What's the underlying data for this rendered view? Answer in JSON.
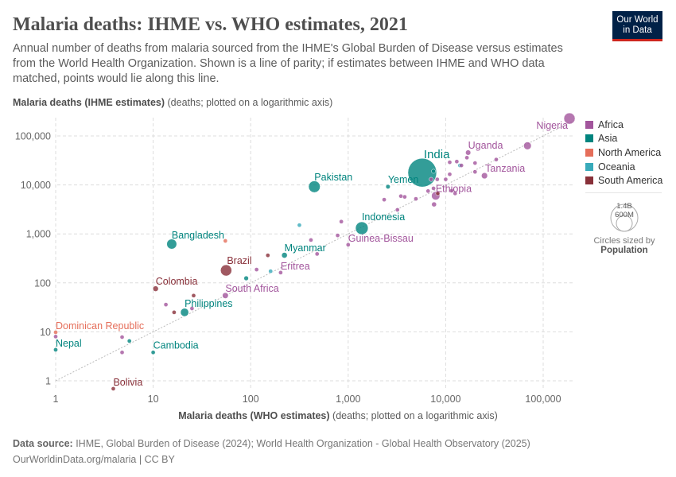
{
  "header": {
    "title": "Malaria deaths: IHME vs. WHO estimates, 2021",
    "subtitle": "Annual number of deaths from malaria sourced from the IHME's Global Burden of Disease versus estimates from the World Health Organization. Shown is a line of parity; if estimates between IHME and WHO data matched, points would lie along this line.",
    "logo": "Our World in Data"
  },
  "chart_data": {
    "type": "scatter",
    "title": "Malaria deaths: IHME vs. WHO estimates, 2021",
    "xlabel_bold": "Malaria deaths (WHO estimates)",
    "xlabel_note": " (deaths; plotted on a logarithmic axis)",
    "ylabel_bold": "Malaria deaths (IHME estimates)",
    "ylabel_note": " (deaths; plotted on a logarithmic axis)",
    "x_scale": "log",
    "y_scale": "log",
    "xlim": [
      1,
      200000
    ],
    "ylim": [
      0.6,
      250000
    ],
    "x_ticks": [
      "1",
      "10",
      "100",
      "1,000",
      "10,000",
      "100,000"
    ],
    "y_ticks": [
      "1",
      "10",
      "100",
      "1,000",
      "10,000",
      "100,000"
    ],
    "grid": true,
    "parity_line": true,
    "legend_placement": "right",
    "colors": {
      "Africa": "#a2559c",
      "Asia": "#00847e",
      "North America": "#e56e5a",
      "Oceania": "#38aaba",
      "South America": "#883039"
    },
    "legend": [
      "Africa",
      "Asia",
      "North America",
      "Oceania",
      "South America"
    ],
    "size_legend": {
      "large": "1.4B",
      "small": "600M",
      "note": "Circles sized by",
      "variable": "Population"
    },
    "points": [
      {
        "label": "Nigeria",
        "region": "Africa",
        "x": 186000,
        "y": 227000,
        "pop": 213000000
      },
      {
        "label": "India",
        "region": "Asia",
        "x": 5750,
        "y": 17800,
        "pop": 1400000000
      },
      {
        "label": "Pakistan",
        "region": "Asia",
        "x": 450,
        "y": 9200,
        "pop": 230000000
      },
      {
        "label": "Bangladesh",
        "region": "Asia",
        "x": 15.5,
        "y": 620,
        "pop": 170000000
      },
      {
        "label": "Brazil",
        "region": "South America",
        "x": 56,
        "y": 180,
        "pop": 214000000
      },
      {
        "label": "Colombia",
        "region": "South America",
        "x": 10.6,
        "y": 76,
        "pop": 51000000
      },
      {
        "label": "Philippines",
        "region": "Asia",
        "x": 21,
        "y": 25,
        "pop": 113000000
      },
      {
        "label": "South Africa",
        "region": "Africa",
        "x": 55,
        "y": 55,
        "pop": 60000000
      },
      {
        "label": "Myanmar",
        "region": "Asia",
        "x": 222,
        "y": 366,
        "pop": 54000000
      },
      {
        "label": "Eritrea",
        "region": "Africa",
        "x": 203,
        "y": 162,
        "pop": 3600000
      },
      {
        "label": "Indonesia",
        "region": "Asia",
        "x": 1380,
        "y": 1310,
        "pop": 275000000
      },
      {
        "label": "Guinea-Bissau",
        "region": "Africa",
        "x": 1000,
        "y": 600,
        "pop": 2100000
      },
      {
        "label": "Yemen",
        "region": "Asia",
        "x": 2560,
        "y": 9200,
        "pop": 33000000
      },
      {
        "label": "Ethiopia",
        "region": "Africa",
        "x": 7900,
        "y": 6000,
        "pop": 120000000
      },
      {
        "label": "Uganda",
        "region": "Africa",
        "x": 17000,
        "y": 45700,
        "pop": 46000000
      },
      {
        "label": "Tanzania",
        "region": "Africa",
        "x": 25000,
        "y": 15400,
        "pop": 64000000
      },
      {
        "label": "Dominican Republic",
        "region": "North America",
        "x": 1,
        "y": 9.8,
        "pop": 11000000
      },
      {
        "label": "Nepal",
        "region": "Asia",
        "x": 1,
        "y": 4.3,
        "pop": 30000000
      },
      {
        "label": "Cambodia",
        "region": "Asia",
        "x": 10,
        "y": 3.8,
        "pop": 17000000
      },
      {
        "label": "Bolivia",
        "region": "South America",
        "x": 3.9,
        "y": 0.69,
        "pop": 12000000
      },
      {
        "label": "",
        "region": "Africa",
        "x": 69000,
        "y": 63000,
        "pop": 100000000
      },
      {
        "label": "",
        "region": "Oceania",
        "x": 316,
        "y": 1510,
        "pop": 10000000
      },
      {
        "label": "",
        "region": "Africa",
        "x": 850,
        "y": 1780,
        "pop": 10000000
      },
      {
        "label": "",
        "region": "Africa",
        "x": 780,
        "y": 930,
        "pop": 10000000
      },
      {
        "label": "",
        "region": "Africa",
        "x": 415,
        "y": 750,
        "pop": 10000000
      },
      {
        "label": "",
        "region": "Africa",
        "x": 480,
        "y": 390,
        "pop": 10000000
      },
      {
        "label": "",
        "region": "North America",
        "x": 55,
        "y": 720,
        "pop": 10000000
      },
      {
        "label": "",
        "region": "South America",
        "x": 150,
        "y": 365,
        "pop": 18000000
      },
      {
        "label": "",
        "region": "Africa",
        "x": 115,
        "y": 187,
        "pop": 10000000
      },
      {
        "label": "",
        "region": "Oceania",
        "x": 160,
        "y": 173,
        "pop": 10000000
      },
      {
        "label": "",
        "region": "Asia",
        "x": 90,
        "y": 124,
        "pop": 36000000
      },
      {
        "label": "",
        "region": "South America",
        "x": 26,
        "y": 55,
        "pop": 10000000
      },
      {
        "label": "",
        "region": "Africa",
        "x": 13.5,
        "y": 36,
        "pop": 10000000
      },
      {
        "label": "",
        "region": "South America",
        "x": 16.4,
        "y": 25,
        "pop": 18000000
      },
      {
        "label": "",
        "region": "Africa",
        "x": 25,
        "y": 30,
        "pop": 10000000
      },
      {
        "label": "",
        "region": "Africa",
        "x": 1,
        "y": 8,
        "pop": 10000000
      },
      {
        "label": "",
        "region": "Africa",
        "x": 4.8,
        "y": 7.8,
        "pop": 10000000
      },
      {
        "label": "",
        "region": "Asia",
        "x": 5.7,
        "y": 6.5,
        "pop": 10000000
      },
      {
        "label": "",
        "region": "Africa",
        "x": 4.8,
        "y": 3.8,
        "pop": 10000000
      },
      {
        "label": "",
        "region": "Africa",
        "x": 2340,
        "y": 5000,
        "pop": 10000000
      },
      {
        "label": "",
        "region": "Africa",
        "x": 3470,
        "y": 5900,
        "pop": 10000000
      },
      {
        "label": "",
        "region": "Africa",
        "x": 3800,
        "y": 5700,
        "pop": 10000000
      },
      {
        "label": "",
        "region": "Africa",
        "x": 4950,
        "y": 5200,
        "pop": 10000000
      },
      {
        "label": "",
        "region": "Africa",
        "x": 3200,
        "y": 3100,
        "pop": 10000000
      },
      {
        "label": "",
        "region": "Africa",
        "x": 7600,
        "y": 4000,
        "pop": 40000000
      },
      {
        "label": "",
        "region": "Africa",
        "x": 6600,
        "y": 7500,
        "pop": 10000000
      },
      {
        "label": "",
        "region": "Africa",
        "x": 7500,
        "y": 8500,
        "pop": 10000000
      },
      {
        "label": "",
        "region": "Africa",
        "x": 7100,
        "y": 13000,
        "pop": 10000000
      },
      {
        "label": "",
        "region": "Africa",
        "x": 8200,
        "y": 13000,
        "pop": 10000000
      },
      {
        "label": "",
        "region": "Asia",
        "x": 7500,
        "y": 19000,
        "pop": 10000000
      },
      {
        "label": "",
        "region": "Africa",
        "x": 10000,
        "y": 13000,
        "pop": 10000000
      },
      {
        "label": "",
        "region": "Africa",
        "x": 11000,
        "y": 16500,
        "pop": 20000000
      },
      {
        "label": "",
        "region": "Africa",
        "x": 11000,
        "y": 29000,
        "pop": 20000000
      },
      {
        "label": "",
        "region": "Africa",
        "x": 13000,
        "y": 30000,
        "pop": 20000000
      },
      {
        "label": "",
        "region": "Oceania",
        "x": 14000,
        "y": 25000,
        "pop": 10000000
      },
      {
        "label": "",
        "region": "Africa",
        "x": 14500,
        "y": 25000,
        "pop": 10000000
      },
      {
        "label": "",
        "region": "Africa",
        "x": 16500,
        "y": 36000,
        "pop": 10000000
      },
      {
        "label": "",
        "region": "Africa",
        "x": 20000,
        "y": 28000,
        "pop": 28000000
      },
      {
        "label": "",
        "region": "Africa",
        "x": 20000,
        "y": 18500,
        "pop": 28000000
      },
      {
        "label": "",
        "region": "Africa",
        "x": 33000,
        "y": 33000,
        "pop": 20000000
      },
      {
        "label": "",
        "region": "Africa",
        "x": 11500,
        "y": 7600,
        "pop": 10000000
      },
      {
        "label": "",
        "region": "Africa",
        "x": 12500,
        "y": 6700,
        "pop": 10000000
      },
      {
        "label": "",
        "region": "South America",
        "x": 8300,
        "y": 6700,
        "pop": 10000000
      }
    ]
  },
  "footer": {
    "source_label": "Data source:",
    "source": " IHME, Global Burden of Disease (2024); World Health Organization - Global Health Observatory (2025)",
    "url": "OurWorldinData.org/malaria | CC BY"
  }
}
